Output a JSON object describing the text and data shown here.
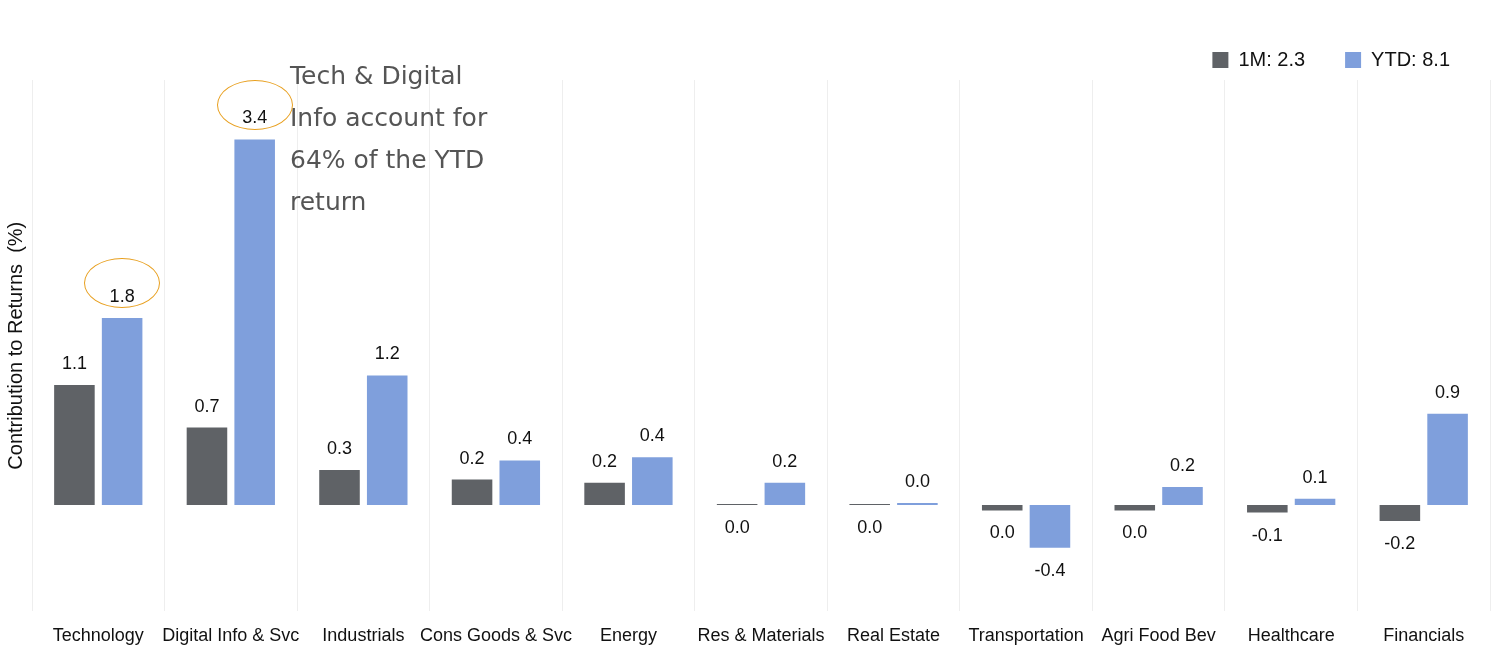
{
  "chart_data": {
    "type": "bar",
    "ylabel": "Contribution to Returns  (%)",
    "categories": [
      "Technology",
      "Digital Info & Svc",
      "Industrials",
      "Cons Goods & Svc",
      "Energy",
      "Res & Materials",
      "Real Estate",
      "Transportation",
      "Agri Food Bev",
      "Healthcare",
      "Financials"
    ],
    "series": [
      {
        "name": "1M: 2.3",
        "color": "#5f6266",
        "values": [
          1.13,
          0.73,
          0.33,
          0.24,
          0.21,
          0.01,
          0.01,
          -0.05,
          -0.05,
          -0.07,
          -0.15
        ],
        "value_labels": [
          "1.1",
          "0.7",
          "0.3",
          "0.2",
          "0.2",
          "0.0",
          "0.0",
          "0.0",
          "0.0",
          "-0.1",
          "-0.2"
        ]
      },
      {
        "name": "YTD: 8.1",
        "color": "#7f9fdc",
        "values": [
          1.76,
          3.44,
          1.22,
          0.42,
          0.45,
          0.21,
          0.02,
          -0.4,
          0.17,
          0.06,
          0.86
        ],
        "value_labels": [
          "1.8",
          "3.4",
          "1.2",
          "0.4",
          "0.4",
          "0.2",
          "0.0",
          "-0.4",
          "0.2",
          "0.1",
          "0.9"
        ]
      }
    ],
    "annotations": [
      "Tech & Digital Info account for 64% of the YTD return"
    ],
    "grid": "x",
    "legend": "top right"
  }
}
